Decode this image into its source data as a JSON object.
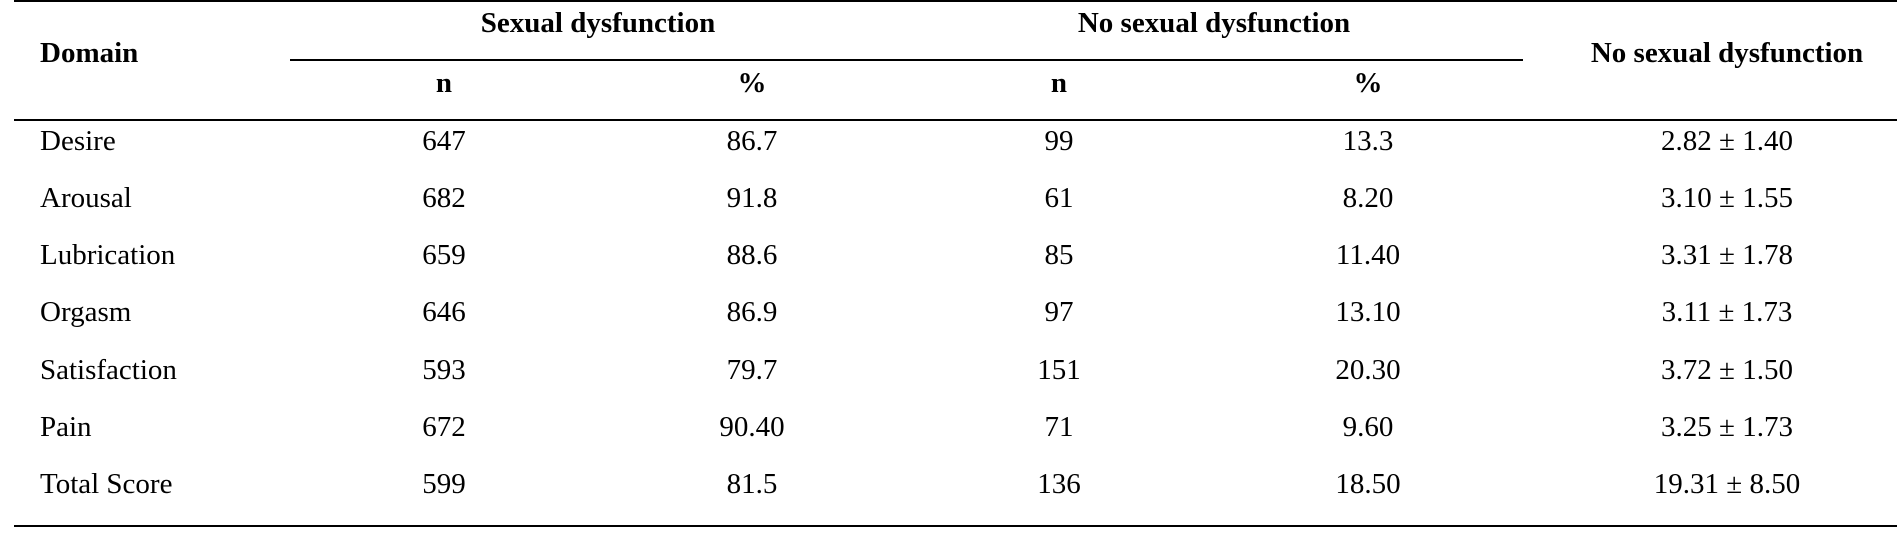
{
  "header": {
    "domain": "Domain",
    "group1": "Sexual dysfunction",
    "group2": "No sexual dysfunction",
    "group3": "No sexual dysfunction",
    "n": "n",
    "pct": "%"
  },
  "rows": [
    {
      "domain": "Desire",
      "n1": "647",
      "p1": "86.7",
      "n2": "99",
      "p2": "13.3",
      "score": "2.82 ± 1.40"
    },
    {
      "domain": "Arousal",
      "n1": "682",
      "p1": "91.8",
      "n2": "61",
      "p2": "8.20",
      "score": "3.10 ± 1.55"
    },
    {
      "domain": "Lubrication",
      "n1": "659",
      "p1": "88.6",
      "n2": "85",
      "p2": "11.40",
      "score": "3.31 ± 1.78"
    },
    {
      "domain": "Orgasm",
      "n1": "646",
      "p1": "86.9",
      "n2": "97",
      "p2": "13.10",
      "score": "3.11 ± 1.73"
    },
    {
      "domain": "Satisfaction",
      "n1": "593",
      "p1": "79.7",
      "n2": "151",
      "p2": "20.30",
      "score": "3.72 ± 1.50"
    },
    {
      "domain": "Pain",
      "n1": "672",
      "p1": "90.40",
      "n2": "71",
      "p2": "9.60",
      "score": "3.25 ± 1.73"
    },
    {
      "domain": "Total Score",
      "n1": "599",
      "p1": "81.5",
      "n2": "136",
      "p2": "18.50",
      "score": "19.31 ± 8.50"
    }
  ]
}
